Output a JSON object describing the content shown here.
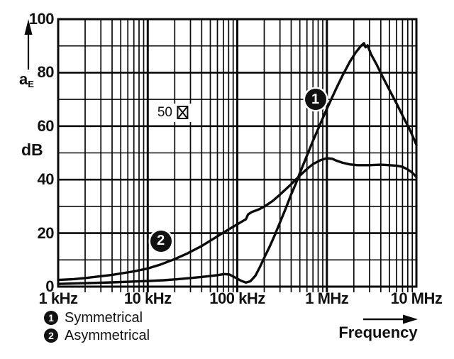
{
  "y_axis": {
    "quantity": "a",
    "quantity_sub": "E",
    "unit": "dB",
    "tick_labels": [
      "0",
      "20",
      "40",
      "60",
      "80",
      "100"
    ]
  },
  "x_axis": {
    "title": "Frequency",
    "tick_labels": [
      "1 kHz",
      "10 kHz",
      "100 kHz",
      "1 MHz",
      "10 MHz"
    ]
  },
  "overlay_label": {
    "text": "50",
    "symbol": "⊠",
    "freq_khz": 19,
    "db": 65
  },
  "legend": [
    {
      "badge": "1",
      "label": "Symmetrical"
    },
    {
      "badge": "2",
      "label": "Asymmetrical"
    }
  ],
  "colors": {
    "line": "#0a0a0a",
    "background": "#ffffff",
    "badge_bg": "#111111",
    "badge_text": "#ffffff"
  },
  "chart_data": {
    "type": "line",
    "title": "",
    "xlabel": "Frequency",
    "ylabel": "aE (dB)",
    "x_scale": "log",
    "x_unit": "kHz",
    "x_range_khz": [
      1,
      10000
    ],
    "ylim": [
      0,
      100
    ],
    "y_major_step": 20,
    "y_minor_step": 10,
    "grid": true,
    "legend_position": "bottom-left",
    "annotations": [
      {
        "badge": "1",
        "freq_khz": 745,
        "db": 70
      },
      {
        "badge": "2",
        "freq_khz": 14,
        "db": 17
      }
    ],
    "series": [
      {
        "name": "Symmetrical",
        "badge": "1",
        "points_khz_db": [
          [
            1,
            1
          ],
          [
            2,
            1.3
          ],
          [
            4,
            1.6
          ],
          [
            7,
            1.9
          ],
          [
            10,
            2.1
          ],
          [
            15,
            2.4
          ],
          [
            22,
            2.8
          ],
          [
            32,
            3.3
          ],
          [
            45,
            3.8
          ],
          [
            60,
            4.3
          ],
          [
            72,
            4.7
          ],
          [
            82,
            4.5
          ],
          [
            95,
            3.4
          ],
          [
            110,
            2.2
          ],
          [
            125,
            1.5
          ],
          [
            140,
            2
          ],
          [
            160,
            4.2
          ],
          [
            180,
            7.5
          ],
          [
            200,
            10.8
          ],
          [
            230,
            15
          ],
          [
            260,
            19
          ],
          [
            300,
            24
          ],
          [
            350,
            29.5
          ],
          [
            400,
            34.5
          ],
          [
            450,
            38.5
          ],
          [
            500,
            42.5
          ],
          [
            600,
            49
          ],
          [
            700,
            54.5
          ],
          [
            850,
            61
          ],
          [
            1000,
            66.5
          ],
          [
            1250,
            73.5
          ],
          [
            1500,
            79
          ],
          [
            1800,
            84
          ],
          [
            2100,
            87.5
          ],
          [
            2400,
            90
          ],
          [
            2600,
            91
          ],
          [
            2700,
            89.5
          ],
          [
            2850,
            90.2
          ],
          [
            3100,
            87
          ],
          [
            3600,
            83
          ],
          [
            4200,
            78.5
          ],
          [
            5000,
            73.5
          ],
          [
            6000,
            68.5
          ],
          [
            7000,
            64
          ],
          [
            8500,
            58.5
          ],
          [
            10000,
            53
          ]
        ]
      },
      {
        "name": "Asymmetrical",
        "badge": "2",
        "points_khz_db": [
          [
            1,
            2.5
          ],
          [
            1.5,
            2.8
          ],
          [
            2,
            3.2
          ],
          [
            3,
            3.9
          ],
          [
            4,
            4.4
          ],
          [
            5,
            4.9
          ],
          [
            7,
            5.7
          ],
          [
            10,
            6.8
          ],
          [
            14,
            8.3
          ],
          [
            20,
            10.3
          ],
          [
            28,
            12.5
          ],
          [
            40,
            15.2
          ],
          [
            55,
            18
          ],
          [
            70,
            20.2
          ],
          [
            85,
            21.9
          ],
          [
            100,
            23.3
          ],
          [
            115,
            24.5
          ],
          [
            125,
            25.2
          ],
          [
            132,
            27
          ],
          [
            145,
            27.9
          ],
          [
            160,
            28.4
          ],
          [
            180,
            29.1
          ],
          [
            200,
            29.9
          ],
          [
            250,
            32.1
          ],
          [
            300,
            34.4
          ],
          [
            400,
            38.3
          ],
          [
            500,
            41.5
          ],
          [
            600,
            44
          ],
          [
            700,
            45.8
          ],
          [
            850,
            47.3
          ],
          [
            1000,
            48
          ],
          [
            1150,
            47.8
          ],
          [
            1300,
            47
          ],
          [
            1500,
            46.3
          ],
          [
            1800,
            45.7
          ],
          [
            2200,
            45.4
          ],
          [
            3000,
            45.4
          ],
          [
            4000,
            45.6
          ],
          [
            5000,
            45.4
          ],
          [
            6000,
            45.2
          ],
          [
            7000,
            44.8
          ],
          [
            8000,
            43.8
          ],
          [
            9000,
            42.6
          ],
          [
            10000,
            41
          ]
        ]
      }
    ]
  }
}
